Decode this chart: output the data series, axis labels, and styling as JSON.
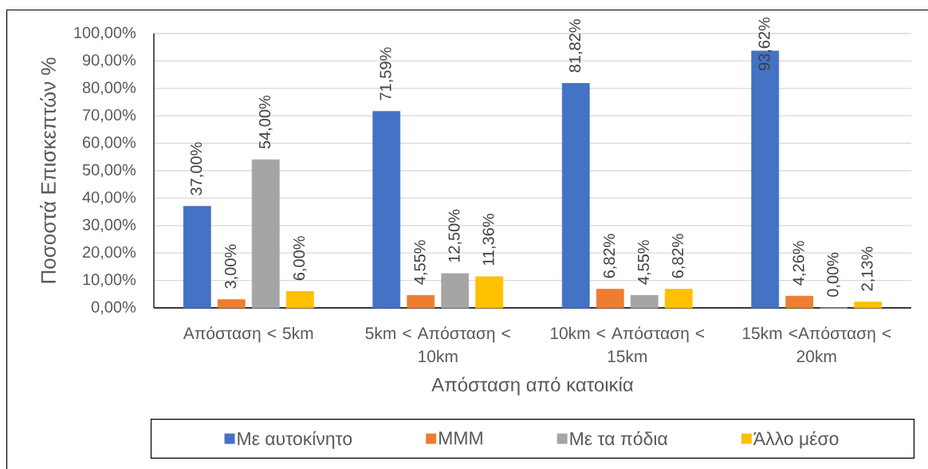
{
  "chart_data": {
    "type": "bar",
    "xlabel": "Απόσταση από κατοικία",
    "ylabel": "Ποσοστά Επισκεπτών %",
    "categories": [
      "Απόσταση < 5km",
      "5km < Απόσταση < 10km",
      "10km < Απόσταση < 15km",
      "15km <Απόσταση < 20km"
    ],
    "series": [
      {
        "name": "Με αυτοκίνητο",
        "color": "#4472c4",
        "values": [
          37,
          71.59,
          81.82,
          93.62
        ],
        "value_labels": [
          "37,00%",
          "71,59%",
          "81,82%",
          "93,62%"
        ]
      },
      {
        "name": "ΜΜΜ",
        "color": "#ed7d31",
        "values": [
          3,
          4.55,
          6.82,
          4.26
        ],
        "value_labels": [
          "3,00%",
          "4,55%",
          "6,82%",
          "4,26%"
        ]
      },
      {
        "name": "Με τα πόδια",
        "color": "#a5a5a5",
        "values": [
          54,
          12.5,
          4.55,
          0
        ],
        "value_labels": [
          "54,00%",
          "12,50%",
          "4,55%",
          "0,00%"
        ]
      },
      {
        "name": "Άλλο μέσο",
        "color": "#ffc000",
        "values": [
          6,
          11.36,
          6.82,
          2.13
        ],
        "value_labels": [
          "6,00%",
          "11,36%",
          "6,82%",
          "2,13%"
        ]
      }
    ],
    "ylim": [
      0,
      100
    ],
    "yticks": [
      {
        "value": 0,
        "label": "0,00%"
      },
      {
        "value": 10,
        "label": "10,00%"
      },
      {
        "value": 20,
        "label": "20,00%"
      },
      {
        "value": 30,
        "label": "30,00%"
      },
      {
        "value": 40,
        "label": "40,00%"
      },
      {
        "value": 50,
        "label": "50,00%"
      },
      {
        "value": 60,
        "label": "60,00%"
      },
      {
        "value": 70,
        "label": "70,00%"
      },
      {
        "value": 80,
        "label": "80,00%"
      },
      {
        "value": 90,
        "label": "90,00%"
      },
      {
        "value": 100,
        "label": "100,00%"
      }
    ],
    "grid": "y",
    "legend": "bottom"
  }
}
